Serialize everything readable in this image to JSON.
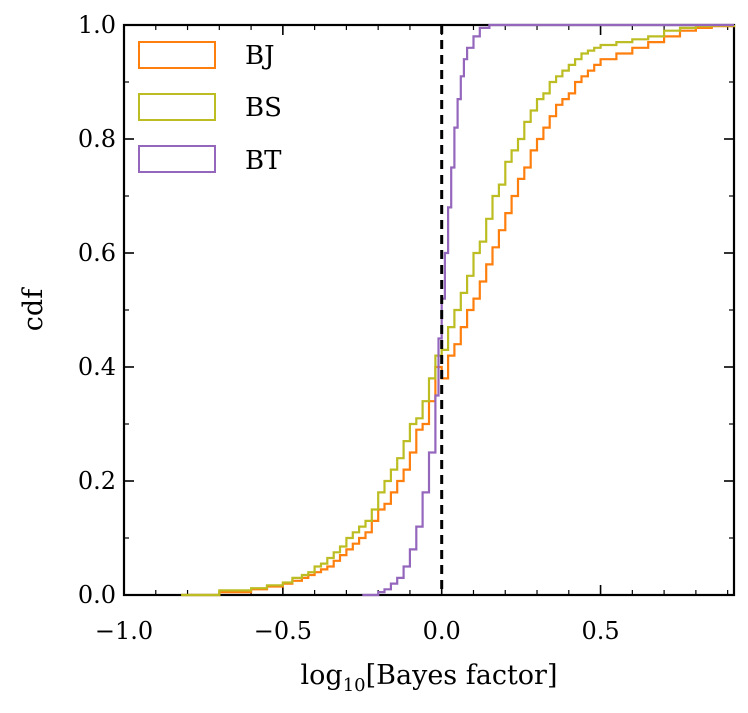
{
  "chart_data": {
    "type": "line",
    "step": "post",
    "xlabel_base": "log",
    "xlabel_sub": "10",
    "xlabel_rest": "[Bayes factor]",
    "ylabel": "cdf",
    "xlim": [
      -1.0,
      0.92
    ],
    "ylim": [
      0.0,
      1.0
    ],
    "xticks": [
      -1.0,
      -0.5,
      0.0,
      0.5
    ],
    "xtick_labels": [
      "−1.0",
      "−0.5",
      "0.0",
      "0.5"
    ],
    "yticks": [
      0.0,
      0.2,
      0.4,
      0.6,
      0.8,
      1.0
    ],
    "ytick_labels": [
      "0.0",
      "0.2",
      "0.4",
      "0.6",
      "0.8",
      "1.0"
    ],
    "legend_position": "top-left",
    "reference_line": {
      "x": 0.0,
      "style": "dashed",
      "color": "#000000"
    },
    "series": [
      {
        "name": "BJ",
        "color": "#ff7f0e",
        "x": [
          -0.82,
          -0.7,
          -0.6,
          -0.55,
          -0.5,
          -0.47,
          -0.44,
          -0.42,
          -0.4,
          -0.38,
          -0.36,
          -0.34,
          -0.32,
          -0.3,
          -0.28,
          -0.26,
          -0.24,
          -0.22,
          -0.2,
          -0.18,
          -0.16,
          -0.14,
          -0.12,
          -0.1,
          -0.08,
          -0.06,
          -0.04,
          -0.02,
          0.0,
          0.02,
          0.04,
          0.06,
          0.08,
          0.1,
          0.12,
          0.14,
          0.16,
          0.18,
          0.2,
          0.22,
          0.24,
          0.26,
          0.28,
          0.3,
          0.32,
          0.34,
          0.36,
          0.38,
          0.4,
          0.42,
          0.44,
          0.46,
          0.48,
          0.5,
          0.55,
          0.6,
          0.65,
          0.7,
          0.75,
          0.8,
          0.85,
          0.92
        ],
        "values": [
          0.0,
          0.005,
          0.01,
          0.015,
          0.02,
          0.025,
          0.03,
          0.035,
          0.04,
          0.045,
          0.05,
          0.06,
          0.07,
          0.08,
          0.09,
          0.1,
          0.11,
          0.13,
          0.15,
          0.16,
          0.18,
          0.2,
          0.22,
          0.25,
          0.29,
          0.3,
          0.34,
          0.4,
          0.38,
          0.42,
          0.44,
          0.47,
          0.5,
          0.52,
          0.55,
          0.58,
          0.61,
          0.64,
          0.67,
          0.7,
          0.73,
          0.75,
          0.78,
          0.8,
          0.82,
          0.84,
          0.86,
          0.87,
          0.88,
          0.9,
          0.91,
          0.92,
          0.93,
          0.94,
          0.95,
          0.96,
          0.97,
          0.98,
          0.99,
          0.995,
          0.998,
          1.0
        ]
      },
      {
        "name": "BS",
        "color": "#bcbd22",
        "x": [
          -0.82,
          -0.7,
          -0.6,
          -0.55,
          -0.5,
          -0.47,
          -0.44,
          -0.42,
          -0.4,
          -0.38,
          -0.36,
          -0.34,
          -0.32,
          -0.3,
          -0.28,
          -0.26,
          -0.24,
          -0.22,
          -0.2,
          -0.18,
          -0.16,
          -0.14,
          -0.12,
          -0.1,
          -0.08,
          -0.06,
          -0.04,
          -0.02,
          0.0,
          0.02,
          0.04,
          0.06,
          0.08,
          0.1,
          0.12,
          0.14,
          0.16,
          0.18,
          0.2,
          0.22,
          0.24,
          0.26,
          0.28,
          0.3,
          0.32,
          0.34,
          0.36,
          0.38,
          0.4,
          0.42,
          0.44,
          0.46,
          0.48,
          0.5,
          0.55,
          0.6,
          0.65,
          0.7,
          0.75,
          0.8,
          0.85,
          0.92
        ],
        "values": [
          0.0,
          0.008,
          0.012,
          0.017,
          0.022,
          0.03,
          0.035,
          0.04,
          0.05,
          0.055,
          0.065,
          0.075,
          0.085,
          0.1,
          0.11,
          0.12,
          0.13,
          0.15,
          0.18,
          0.2,
          0.22,
          0.24,
          0.27,
          0.3,
          0.31,
          0.34,
          0.38,
          0.42,
          0.43,
          0.47,
          0.5,
          0.53,
          0.56,
          0.6,
          0.62,
          0.66,
          0.7,
          0.72,
          0.76,
          0.78,
          0.8,
          0.83,
          0.85,
          0.87,
          0.88,
          0.9,
          0.91,
          0.92,
          0.93,
          0.94,
          0.95,
          0.955,
          0.96,
          0.965,
          0.97,
          0.975,
          0.98,
          0.99,
          0.995,
          0.998,
          0.999,
          1.0
        ]
      },
      {
        "name": "BT",
        "color": "#9467bd",
        "x": [
          -0.25,
          -0.2,
          -0.18,
          -0.16,
          -0.14,
          -0.12,
          -0.1,
          -0.08,
          -0.06,
          -0.04,
          -0.02,
          -0.01,
          0.0,
          0.01,
          0.02,
          0.03,
          0.04,
          0.05,
          0.06,
          0.07,
          0.08,
          0.1,
          0.12,
          0.15
        ],
        "values": [
          0.0,
          0.005,
          0.01,
          0.02,
          0.03,
          0.05,
          0.08,
          0.12,
          0.18,
          0.25,
          0.35,
          0.45,
          0.52,
          0.6,
          0.68,
          0.75,
          0.82,
          0.87,
          0.91,
          0.94,
          0.96,
          0.98,
          0.995,
          1.0
        ]
      }
    ]
  }
}
